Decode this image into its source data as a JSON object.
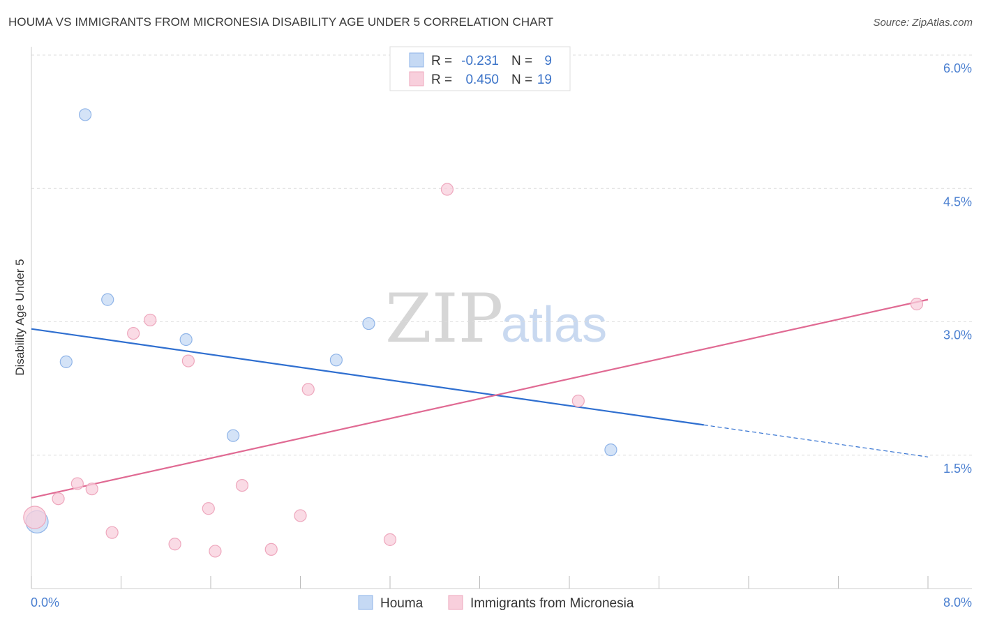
{
  "title": "HOUMA VS IMMIGRANTS FROM MICRONESIA DISABILITY AGE UNDER 5 CORRELATION CHART",
  "source": "Source: ZipAtlas.com",
  "watermark": {
    "zip": "ZIP",
    "atlas": "atlas"
  },
  "chart_data": {
    "type": "scatter",
    "title": "HOUMA VS IMMIGRANTS FROM MICRONESIA DISABILITY AGE UNDER 5 CORRELATION CHART",
    "xlabel": "",
    "ylabel": "Disability Age Under 5",
    "xlim": [
      0,
      8
    ],
    "ylim": [
      0,
      6.15
    ],
    "x_tick_labels": {
      "min": "0.0%",
      "max": "8.0%"
    },
    "y_ticks": [
      {
        "value": 1.5,
        "label": "1.5%"
      },
      {
        "value": 3.0,
        "label": "3.0%"
      },
      {
        "value": 4.5,
        "label": "4.5%"
      },
      {
        "value": 6.0,
        "label": "6.0%"
      }
    ],
    "legend": {
      "placement": "top-center",
      "rows": [
        {
          "r_label": "R =",
          "r_value": "-0.231",
          "n_label": "N =",
          "n_value": "9"
        },
        {
          "r_label": "R =",
          "r_value": "0.450",
          "n_label": "N =",
          "n_value": "19"
        }
      ]
    },
    "series": [
      {
        "name": "Houma",
        "color": "#8fb4e8",
        "fill": "#c5d9f4",
        "line_color": "#2f6fd0",
        "points": [
          {
            "x": 0.05,
            "y": 0.75,
            "big": true
          },
          {
            "x": 0.31,
            "y": 2.55
          },
          {
            "x": 0.48,
            "y": 5.33
          },
          {
            "x": 0.68,
            "y": 3.25
          },
          {
            "x": 1.38,
            "y": 2.8
          },
          {
            "x": 1.8,
            "y": 1.72
          },
          {
            "x": 2.72,
            "y": 2.57
          },
          {
            "x": 3.01,
            "y": 2.98
          },
          {
            "x": 5.17,
            "y": 1.56
          }
        ],
        "trend": {
          "x0": 0,
          "y0": 2.92,
          "x1": 6.0,
          "y1": 1.84,
          "dash_to_x": 8.0,
          "dash_to_y": 1.48
        }
      },
      {
        "name": "Immigrants from Micronesia",
        "color": "#eea7bd",
        "fill": "#f8cfdc",
        "line_color": "#e06a93",
        "points": [
          {
            "x": 0.03,
            "y": 0.8,
            "big": true
          },
          {
            "x": 0.24,
            "y": 1.01
          },
          {
            "x": 0.41,
            "y": 1.18
          },
          {
            "x": 0.54,
            "y": 1.12
          },
          {
            "x": 0.72,
            "y": 0.63
          },
          {
            "x": 0.91,
            "y": 2.87
          },
          {
            "x": 1.06,
            "y": 3.02
          },
          {
            "x": 1.28,
            "y": 0.5
          },
          {
            "x": 1.4,
            "y": 2.56
          },
          {
            "x": 1.58,
            "y": 0.9
          },
          {
            "x": 1.64,
            "y": 0.42
          },
          {
            "x": 1.88,
            "y": 1.16
          },
          {
            "x": 2.14,
            "y": 0.44
          },
          {
            "x": 2.4,
            "y": 0.82
          },
          {
            "x": 2.47,
            "y": 2.24
          },
          {
            "x": 3.2,
            "y": 0.55
          },
          {
            "x": 3.71,
            "y": 4.49
          },
          {
            "x": 4.88,
            "y": 2.11
          },
          {
            "x": 7.9,
            "y": 3.2
          }
        ],
        "trend": {
          "x0": 0,
          "y0": 1.02,
          "x1": 8.0,
          "y1": 3.25
        }
      }
    ]
  }
}
